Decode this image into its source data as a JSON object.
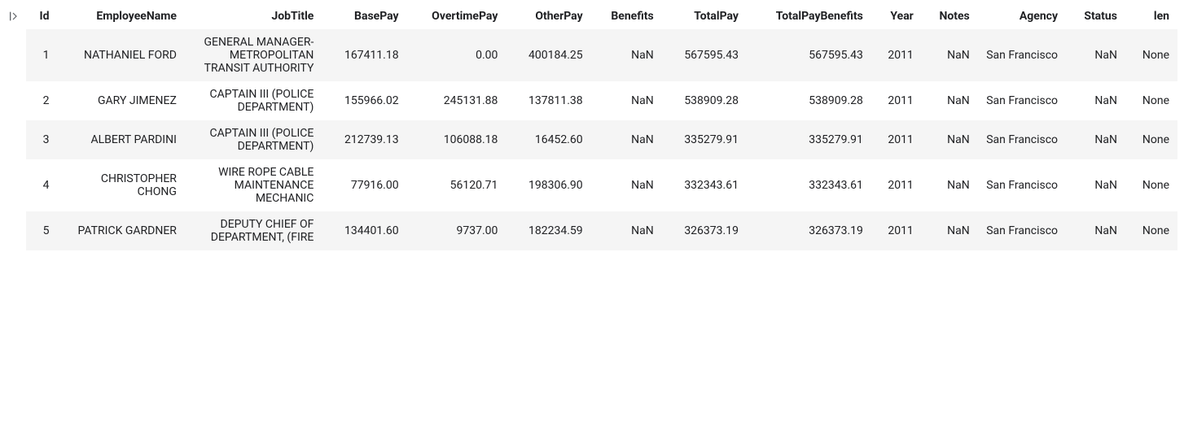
{
  "table": {
    "columns": [
      "Id",
      "EmployeeName",
      "JobTitle",
      "BasePay",
      "OvertimePay",
      "OtherPay",
      "Benefits",
      "TotalPay",
      "TotalPayBenefits",
      "Year",
      "Notes",
      "Agency",
      "Status",
      "len"
    ],
    "rows": [
      {
        "Id": "1",
        "EmployeeName": "NATHANIEL FORD",
        "JobTitle": "GENERAL MANAGER-METROPOLITAN TRANSIT AUTHORITY",
        "BasePay": "167411.18",
        "OvertimePay": "0.00",
        "OtherPay": "400184.25",
        "Benefits": "NaN",
        "TotalPay": "567595.43",
        "TotalPayBenefits": "567595.43",
        "Year": "2011",
        "Notes": "NaN",
        "Agency": "San Francisco",
        "Status": "NaN",
        "len": "None"
      },
      {
        "Id": "2",
        "EmployeeName": "GARY JIMENEZ",
        "JobTitle": "CAPTAIN III (POLICE DEPARTMENT)",
        "BasePay": "155966.02",
        "OvertimePay": "245131.88",
        "OtherPay": "137811.38",
        "Benefits": "NaN",
        "TotalPay": "538909.28",
        "TotalPayBenefits": "538909.28",
        "Year": "2011",
        "Notes": "NaN",
        "Agency": "San Francisco",
        "Status": "NaN",
        "len": "None"
      },
      {
        "Id": "3",
        "EmployeeName": "ALBERT PARDINI",
        "JobTitle": "CAPTAIN III (POLICE DEPARTMENT)",
        "BasePay": "212739.13",
        "OvertimePay": "106088.18",
        "OtherPay": "16452.60",
        "Benefits": "NaN",
        "TotalPay": "335279.91",
        "TotalPayBenefits": "335279.91",
        "Year": "2011",
        "Notes": "NaN",
        "Agency": "San Francisco",
        "Status": "NaN",
        "len": "None"
      },
      {
        "Id": "4",
        "EmployeeName": "CHRISTOPHER CHONG",
        "JobTitle": "WIRE ROPE CABLE MAINTENANCE MECHANIC",
        "BasePay": "77916.00",
        "OvertimePay": "56120.71",
        "OtherPay": "198306.90",
        "Benefits": "NaN",
        "TotalPay": "332343.61",
        "TotalPayBenefits": "332343.61",
        "Year": "2011",
        "Notes": "NaN",
        "Agency": "San Francisco",
        "Status": "NaN",
        "len": "None"
      },
      {
        "Id": "5",
        "EmployeeName": "PATRICK GARDNER",
        "JobTitle": "DEPUTY CHIEF OF DEPARTMENT, (FIRE",
        "BasePay": "134401.60",
        "OvertimePay": "9737.00",
        "OtherPay": "182234.59",
        "Benefits": "NaN",
        "TotalPay": "326373.19",
        "TotalPayBenefits": "326373.19",
        "Year": "2011",
        "Notes": "NaN",
        "Agency": "San Francisco",
        "Status": "NaN",
        "len": "None"
      }
    ],
    "column_classes": {
      "EmployeeName": "col-employee wrap",
      "JobTitle": "col-jobtitle wrap",
      "Agency": "col-agency wrap"
    },
    "header_bg": "#ffffff",
    "row_odd_bg": "#f5f5f5",
    "row_even_bg": "#ffffff",
    "font_size": 14,
    "text_color": "#202124"
  }
}
